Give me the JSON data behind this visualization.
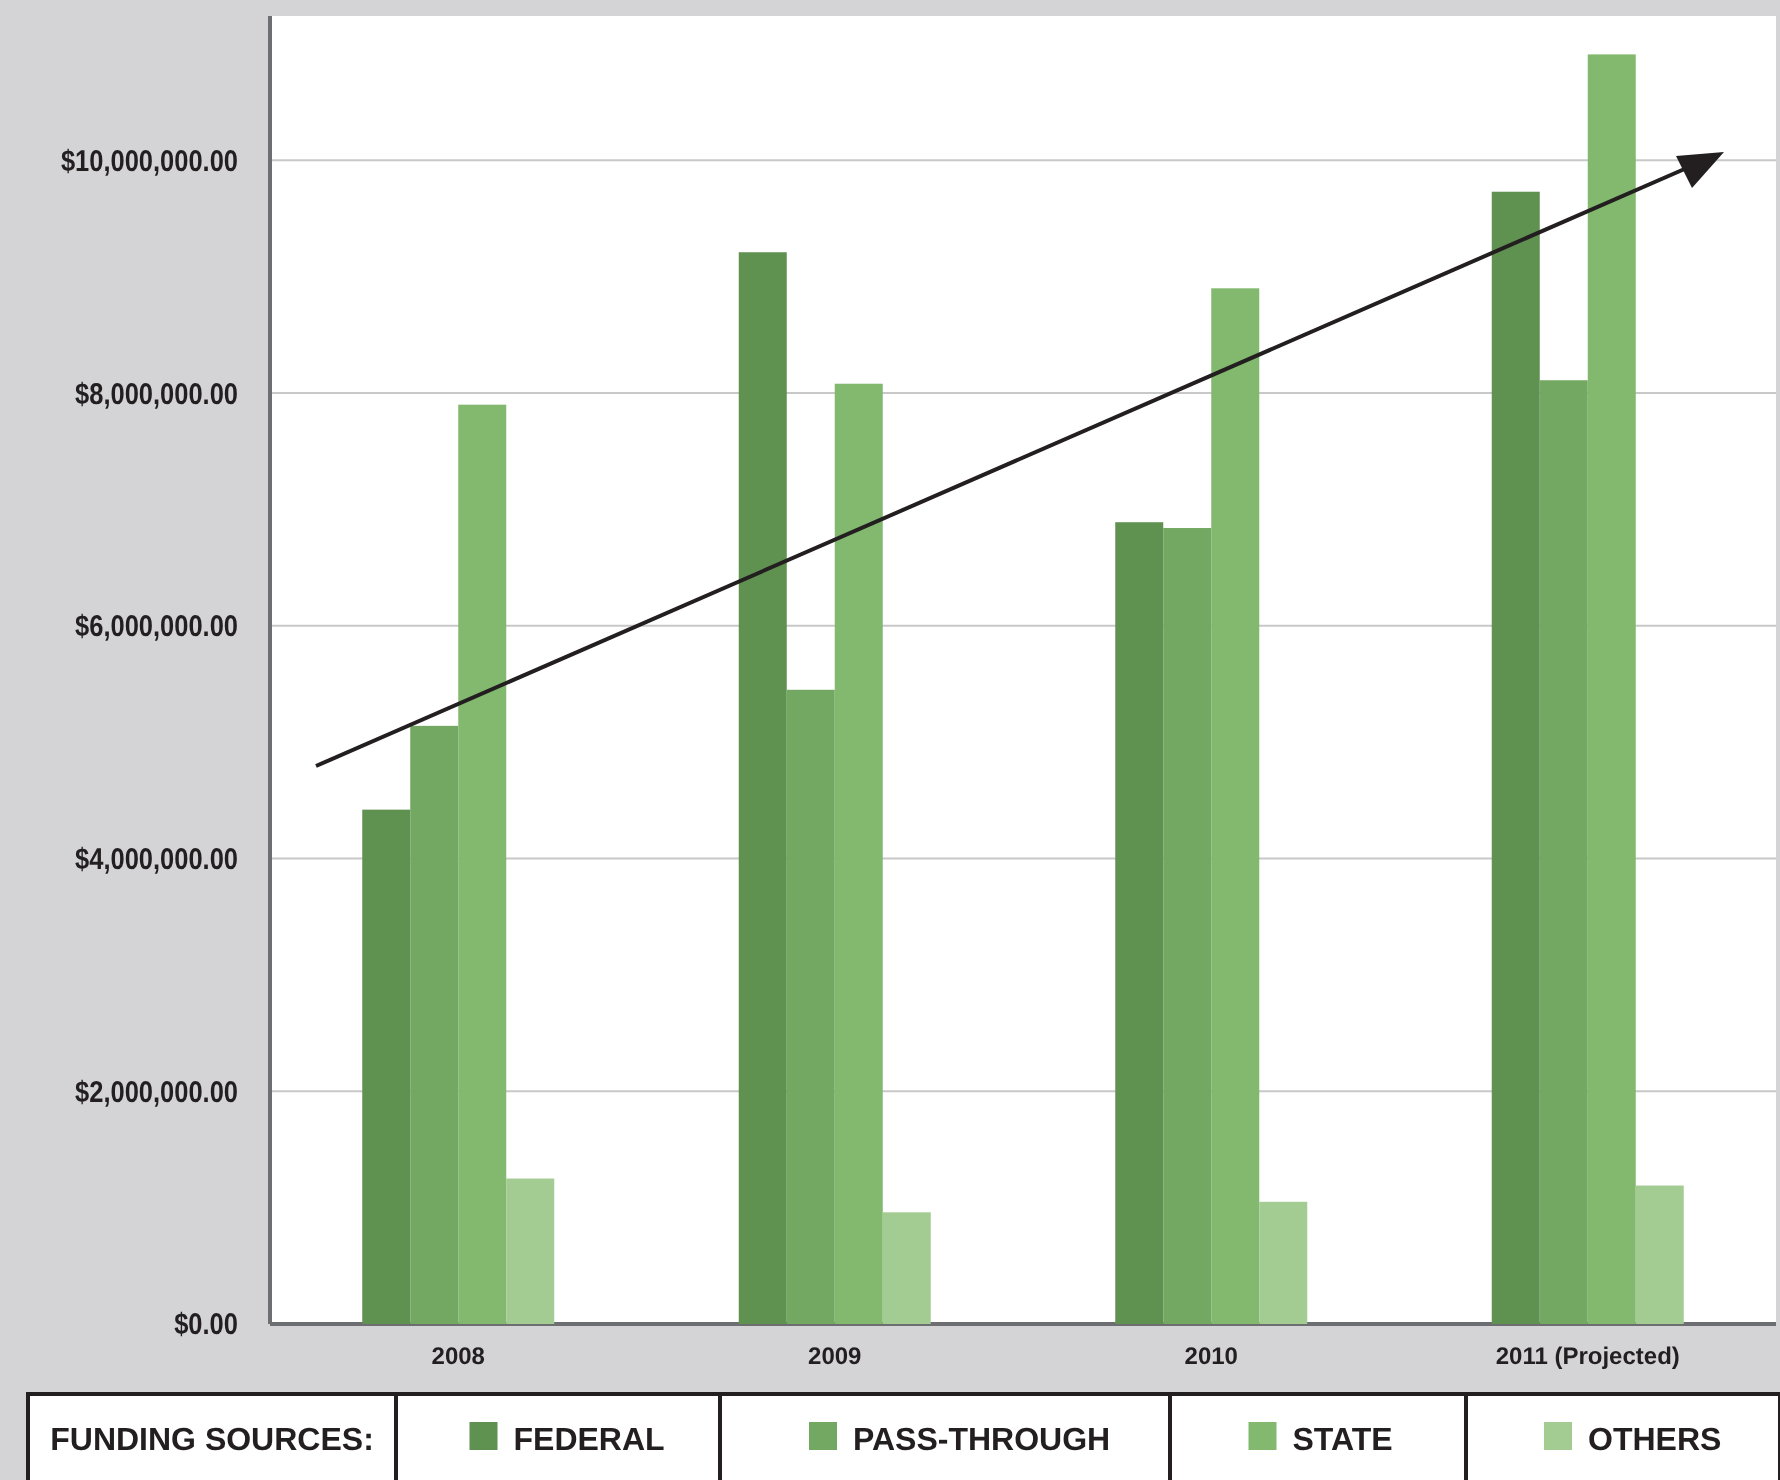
{
  "chart_data": {
    "type": "bar",
    "categories": [
      "2008",
      "2009",
      "2010",
      "2011 (Projected)"
    ],
    "series": [
      {
        "name": "FEDERAL",
        "color": "#5f9151",
        "values": [
          4420000,
          9210000,
          6890000,
          9730000
        ]
      },
      {
        "name": "PASS-THROUGH",
        "color": "#72a862",
        "values": [
          5140000,
          5450000,
          6840000,
          8110000
        ]
      },
      {
        "name": "STATE",
        "color": "#82b96e",
        "values": [
          7900000,
          8080000,
          8900000,
          10910000
        ]
      },
      {
        "name": "OTHERS",
        "color": "#a3cc93",
        "values": [
          1250000,
          960000,
          1050000,
          1190000
        ]
      }
    ],
    "ylim": [
      0,
      11240000
    ],
    "yticks": [
      {
        "value": 0,
        "label": "$0.00"
      },
      {
        "value": 2000000,
        "label": "$2,000,000.00"
      },
      {
        "value": 4000000,
        "label": "$4,000,000.00"
      },
      {
        "value": 6000000,
        "label": "$6,000,000.00"
      },
      {
        "value": 8000000,
        "label": "$8,000,000.00"
      },
      {
        "value": 10000000,
        "label": "$10,000,000.00"
      }
    ],
    "grid": "y",
    "legend": "bottom",
    "legend_title": "FUNDING SOURCES:"
  }
}
